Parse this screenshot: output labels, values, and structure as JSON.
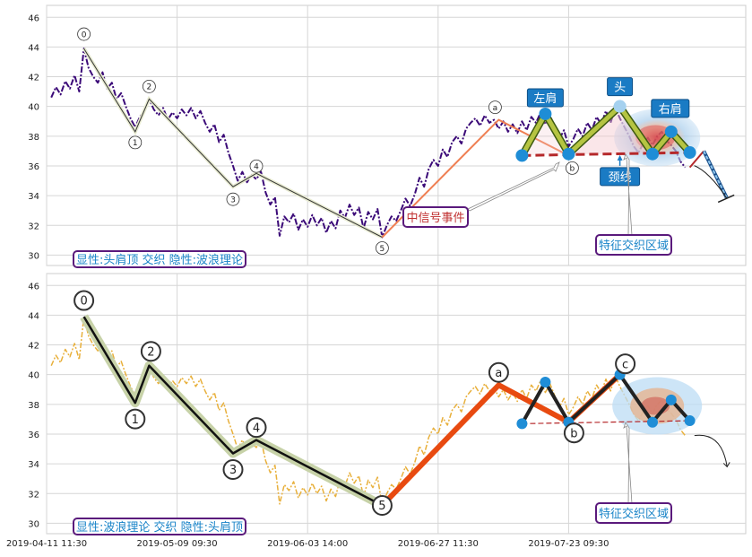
{
  "chart_data": [
    {
      "type": "line",
      "panel": "top",
      "ylim": [
        29.3,
        46.8
      ],
      "yticks": [
        30,
        32,
        34,
        36,
        38,
        40,
        42,
        44,
        46
      ],
      "grid": true,
      "legend_box_text": "显性:头肩顶 交织 隐性:波浪理论",
      "price_series": [
        [
          0.5,
          40.6
        ],
        [
          1,
          41.3
        ],
        [
          1.5,
          40.8
        ],
        [
          2,
          41.7
        ],
        [
          2.5,
          41.2
        ],
        [
          3,
          42.1
        ],
        [
          3.5,
          41.0
        ],
        [
          4,
          43.9
        ],
        [
          4.5,
          42.6
        ],
        [
          5,
          42.0
        ],
        [
          5.5,
          41.6
        ],
        [
          6,
          42.3
        ],
        [
          6.5,
          41.2
        ],
        [
          7,
          41.6
        ],
        [
          7.5,
          40.5
        ],
        [
          8,
          40.9
        ],
        [
          8.5,
          40.0
        ],
        [
          9,
          39.2
        ],
        [
          9.5,
          38.6
        ],
        [
          10,
          39.3
        ],
        [
          10.5,
          39.7
        ],
        [
          11,
          40.5
        ],
        [
          11.5,
          39.8
        ],
        [
          12,
          39.4
        ],
        [
          12.5,
          39.9
        ],
        [
          13,
          39.1
        ],
        [
          13.5,
          39.6
        ],
        [
          14,
          39.2
        ],
        [
          14.5,
          39.8
        ],
        [
          15,
          39.4
        ],
        [
          15.5,
          39.9
        ],
        [
          16,
          39.2
        ],
        [
          16.5,
          39.7
        ],
        [
          17,
          38.9
        ],
        [
          17.5,
          38.3
        ],
        [
          18,
          38.8
        ],
        [
          18.5,
          37.6
        ],
        [
          19,
          38.1
        ],
        [
          19.5,
          36.9
        ],
        [
          20,
          36.0
        ],
        [
          20.5,
          35.0
        ],
        [
          21,
          35.6
        ],
        [
          21.5,
          34.9
        ],
        [
          22,
          35.4
        ],
        [
          22.5,
          35.1
        ],
        [
          23,
          35.6
        ],
        [
          23.5,
          34.2
        ],
        [
          24,
          33.4
        ],
        [
          24.5,
          33.9
        ],
        [
          25,
          31.3
        ],
        [
          25.5,
          32.6
        ],
        [
          26,
          32.2
        ],
        [
          26.5,
          32.8
        ],
        [
          27,
          31.7
        ],
        [
          27.5,
          32.4
        ],
        [
          28,
          31.9
        ],
        [
          28.5,
          32.7
        ],
        [
          29,
          32.0
        ],
        [
          29.5,
          32.5
        ],
        [
          30,
          31.5
        ],
        [
          30.5,
          32.3
        ],
        [
          31,
          31.8
        ],
        [
          31.5,
          33.0
        ],
        [
          32,
          32.5
        ],
        [
          32.5,
          33.4
        ],
        [
          33,
          32.7
        ],
        [
          33.5,
          33.2
        ],
        [
          34,
          31.8
        ],
        [
          34.5,
          32.9
        ],
        [
          35,
          32.4
        ],
        [
          35.5,
          33.1
        ],
        [
          36,
          31.2
        ],
        [
          36.5,
          32.0
        ],
        [
          37,
          32.6
        ],
        [
          37.5,
          32.3
        ],
        [
          38,
          33.0
        ],
        [
          38.5,
          33.8
        ],
        [
          39,
          33.3
        ],
        [
          39.5,
          34.1
        ],
        [
          40,
          35.2
        ],
        [
          40.5,
          34.6
        ],
        [
          41,
          35.8
        ],
        [
          41.5,
          36.4
        ],
        [
          42,
          36.0
        ],
        [
          42.5,
          37.1
        ],
        [
          43,
          36.6
        ],
        [
          43.5,
          37.6
        ],
        [
          44,
          38.0
        ],
        [
          44.5,
          37.5
        ],
        [
          45,
          38.5
        ],
        [
          45.5,
          38.9
        ],
        [
          46,
          39.2
        ],
        [
          46.5,
          38.7
        ],
        [
          47,
          39.4
        ],
        [
          47.5,
          38.9
        ],
        [
          48,
          39.1
        ],
        [
          48.5,
          38.5
        ],
        [
          49,
          39.0
        ],
        [
          49.5,
          38.3
        ],
        [
          50,
          38.8
        ],
        [
          50.5,
          38.2
        ],
        [
          51,
          39.0
        ],
        [
          51.5,
          38.4
        ],
        [
          52,
          39.3
        ],
        [
          52.5,
          38.9
        ],
        [
          53,
          39.6
        ],
        [
          53.5,
          38.8
        ],
        [
          54,
          39.4
        ],
        [
          54.5,
          38.6
        ],
        [
          55,
          37.8
        ],
        [
          55.5,
          38.4
        ],
        [
          56,
          37.3
        ],
        [
          56.5,
          37.8
        ],
        [
          57,
          38.5
        ],
        [
          57.5,
          38.0
        ],
        [
          58,
          38.9
        ],
        [
          58.5,
          38.4
        ],
        [
          59,
          39.3
        ],
        [
          59.5,
          38.8
        ],
        [
          60,
          39.7
        ],
        [
          60.5,
          38.9
        ],
        [
          61,
          39.9
        ],
        [
          61.5,
          39.2
        ],
        [
          62,
          38.6
        ],
        [
          62.5,
          38.0
        ],
        [
          63,
          37.3
        ],
        [
          63.5,
          36.9
        ],
        [
          64,
          37.5
        ],
        [
          64.5,
          37.9
        ],
        [
          65,
          37.4
        ],
        [
          65.5,
          38.0
        ],
        [
          66,
          38.3
        ],
        [
          66.5,
          37.7
        ],
        [
          67,
          37.4
        ],
        [
          67.5,
          37.0
        ],
        [
          68,
          36.3
        ],
        [
          68.5,
          35.9
        ]
      ],
      "wave_points": [
        {
          "label": "0",
          "x": 4,
          "y": 43.9
        },
        {
          "label": "1",
          "x": 9.5,
          "y": 38.3
        },
        {
          "label": "2",
          "x": 11,
          "y": 40.5
        },
        {
          "label": "3",
          "x": 20,
          "y": 34.6
        },
        {
          "label": "4",
          "x": 22.5,
          "y": 35.5
        },
        {
          "label": "5",
          "x": 36,
          "y": 31.2
        },
        {
          "label": "a",
          "x": 48.5,
          "y": 39.1
        },
        {
          "label": "b",
          "x": 56,
          "y": 36.7
        },
        {
          "label": "c",
          "x": 61.5,
          "y": 40.0
        }
      ],
      "hs_points": [
        {
          "x": 51,
          "y": 36.7
        },
        {
          "x": 53.5,
          "y": 39.5
        },
        {
          "x": 56,
          "y": 36.8
        },
        {
          "x": 61.5,
          "y": 40.0
        },
        {
          "x": 65,
          "y": 36.8
        },
        {
          "x": 67,
          "y": 38.3
        },
        {
          "x": 69,
          "y": 36.9
        }
      ],
      "neckline": [
        [
          51,
          36.7
        ],
        [
          69,
          36.9
        ]
      ],
      "forecast": [
        [
          69,
          35.9
        ],
        [
          70.5,
          37.0
        ],
        [
          73,
          33.8
        ]
      ],
      "labels": {
        "left_shoulder": "左肩",
        "head": "头",
        "right_shoulder": "右肩",
        "neckline": "颈线",
        "signal_event": "中信号事件",
        "feature_zone": "特征交织区域"
      }
    },
    {
      "type": "line",
      "panel": "bottom",
      "ylim": [
        29.3,
        46.8
      ],
      "yticks": [
        30,
        32,
        34,
        36,
        38,
        40,
        42,
        44,
        46
      ],
      "grid": true,
      "legend_box_text": "显性:波浪理论 交织 隐性:头肩顶",
      "wave_points": [
        {
          "label": "0",
          "x": 4,
          "y": 43.9
        },
        {
          "label": "1",
          "x": 9.5,
          "y": 38.1
        },
        {
          "label": "2",
          "x": 11,
          "y": 40.6
        },
        {
          "label": "3",
          "x": 20,
          "y": 34.7
        },
        {
          "label": "4",
          "x": 22.5,
          "y": 35.6
        },
        {
          "label": "5",
          "x": 36,
          "y": 31.2
        },
        {
          "label": "a",
          "x": 48.5,
          "y": 39.3
        },
        {
          "label": "b",
          "x": 56,
          "y": 36.8
        },
        {
          "label": "c",
          "x": 61.5,
          "y": 40.0
        }
      ],
      "hs_points": [
        {
          "x": 51,
          "y": 36.7
        },
        {
          "x": 53.5,
          "y": 39.5
        },
        {
          "x": 56,
          "y": 36.8
        },
        {
          "x": 61.5,
          "y": 40.0
        },
        {
          "x": 65,
          "y": 36.8
        },
        {
          "x": 67,
          "y": 38.3
        },
        {
          "x": 69,
          "y": 36.9
        }
      ],
      "neckline": [
        [
          51,
          36.7
        ],
        [
          69,
          36.9
        ]
      ],
      "feature_zone_label": "特征交织区域"
    }
  ],
  "x_axis": {
    "xlim": [
      0,
      75
    ],
    "ticks": [
      {
        "x": 0,
        "label": "2019-04-11 11:30"
      },
      {
        "x": 14,
        "label": "2019-05-09 09:30"
      },
      {
        "x": 28,
        "label": "2019-06-03 14:00"
      },
      {
        "x": 42,
        "label": "2019-06-27 11:30"
      },
      {
        "x": 56,
        "label": "2019-07-23 09:30"
      }
    ]
  },
  "colors": {
    "top_price": "#3b0a78",
    "bottom_price": "#e8b03c",
    "wave_line_top": "#333333",
    "wave_glow": "#c7d2a8",
    "wave_orange": "#ef7f53",
    "wave_bold_red": "#e84a10",
    "hs_dark_green": "#3d5a10",
    "hs_light_green": "#b5c442",
    "node_blue": "#1f8dd6",
    "neckline_red": "#b5282a",
    "callout_blue": "#1a7bc4",
    "box_purple": "#5a1a7c",
    "box_text_red": "#c03030",
    "box_text_blue": "#1a84c8"
  }
}
